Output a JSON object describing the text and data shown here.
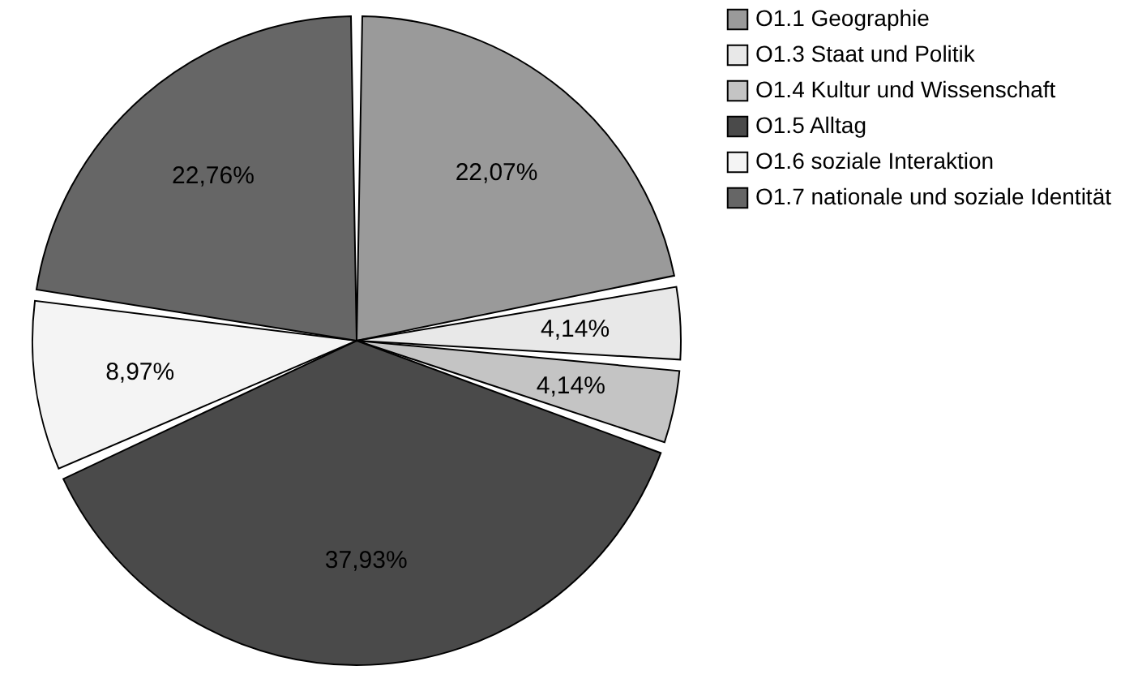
{
  "chart_data": {
    "type": "pie",
    "categories": [
      "O1.1 Geographie",
      "O1.3 Staat und Politik",
      "O1.4 Kultur und Wissenschaft",
      "O1.5 Alltag",
      "O1.6 soziale Interaktion",
      "O1.7 nationale und soziale Identität"
    ],
    "values": [
      22.07,
      4.14,
      4.14,
      37.93,
      8.97,
      22.76
    ],
    "value_labels": [
      "22,07%",
      "4,14%",
      "4,14%",
      "37,93%",
      "8,97%",
      "22,76%"
    ],
    "colors": [
      "#9a9a9a",
      "#e8e8e8",
      "#c4c4c4",
      "#4a4a4a",
      "#f4f4f4",
      "#666666"
    ],
    "legend": "right"
  }
}
